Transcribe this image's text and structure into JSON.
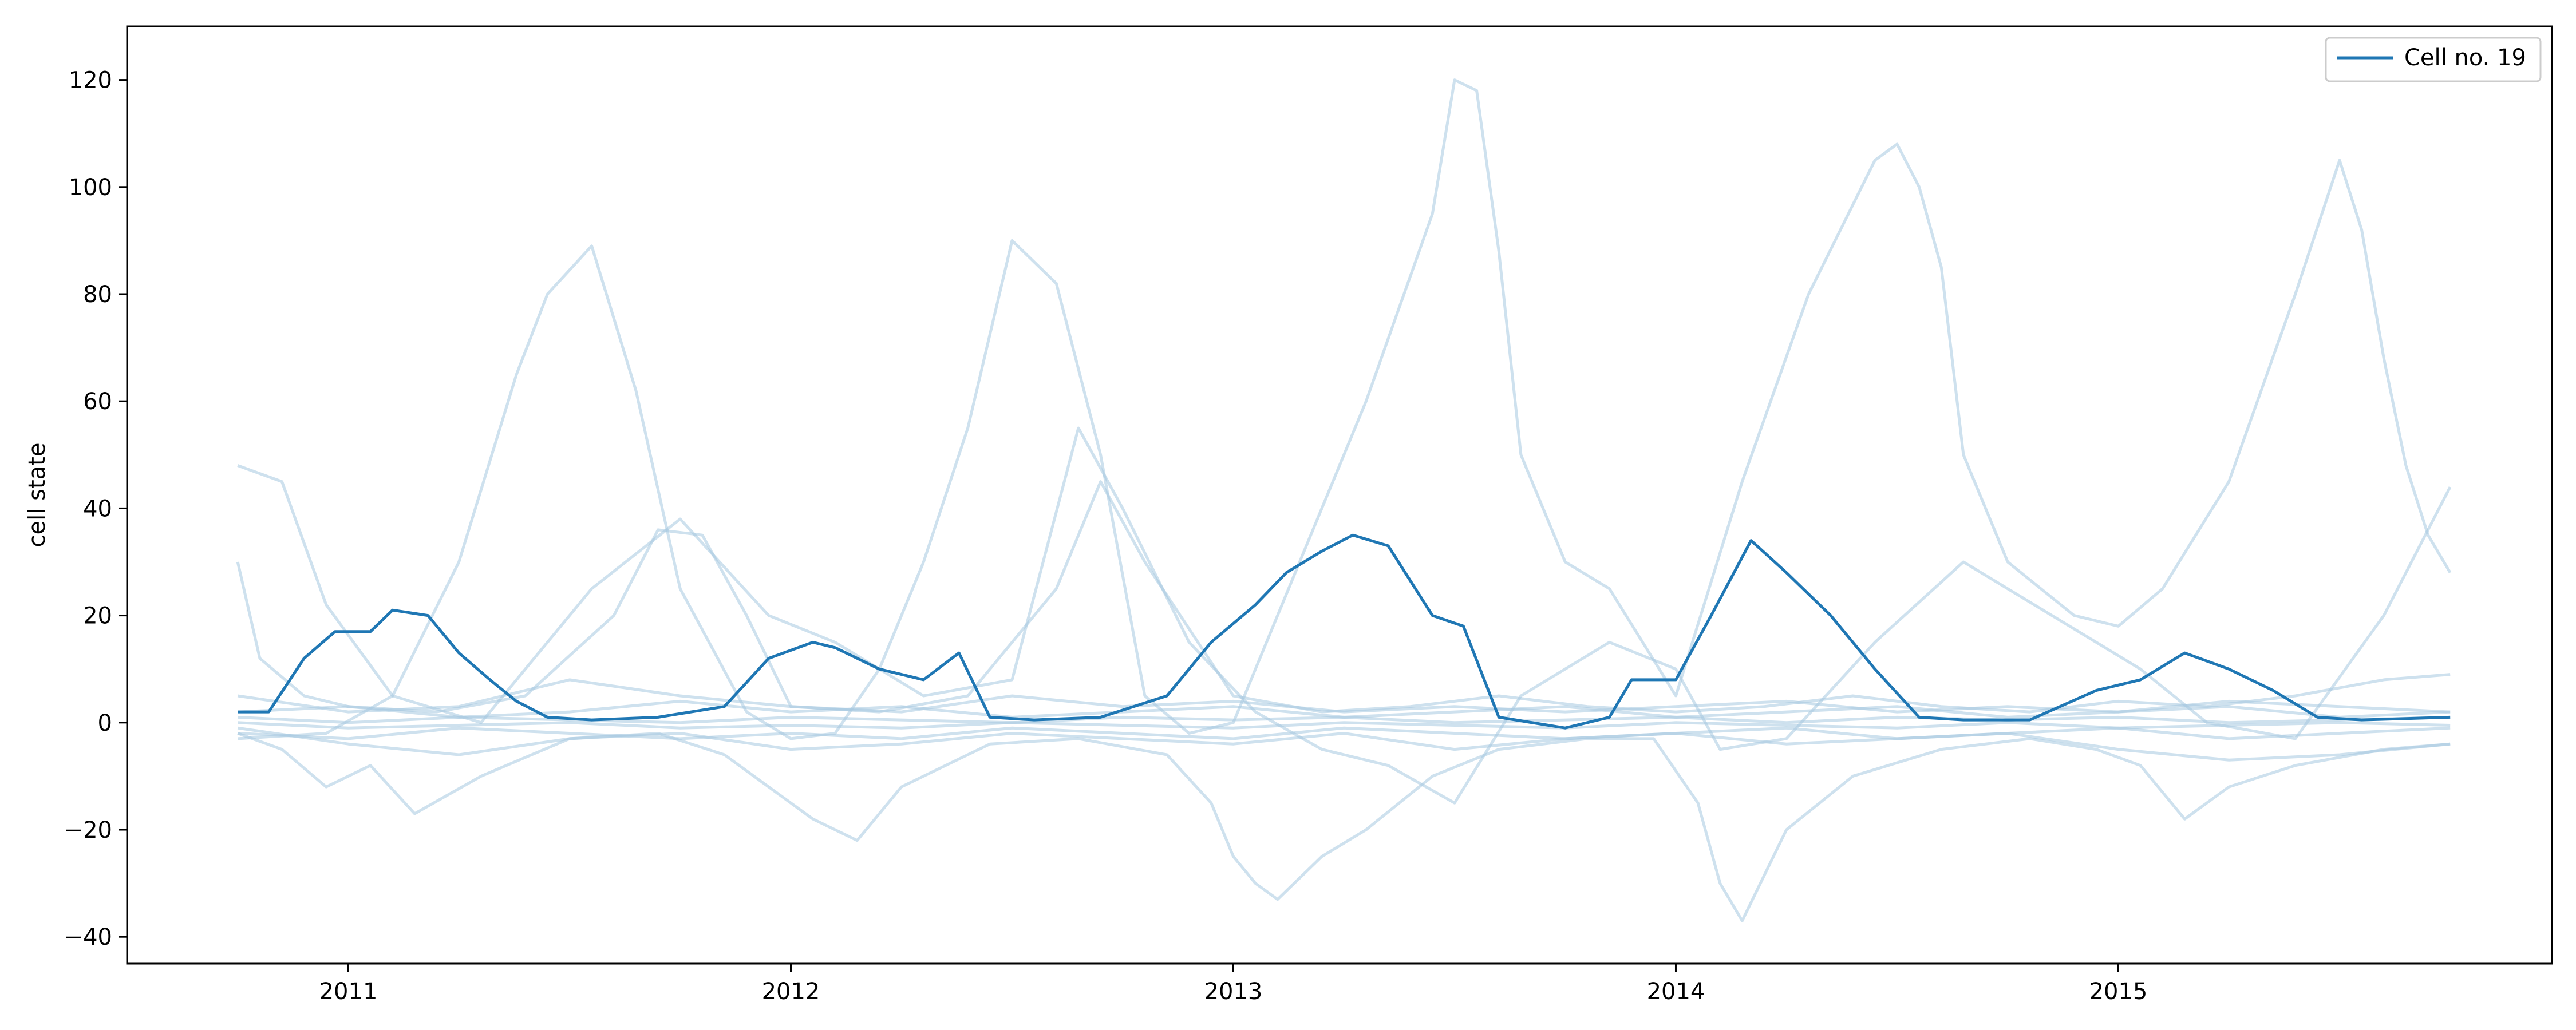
{
  "chart_data": {
    "type": "line",
    "ylabel": "cell state",
    "xlabel": "",
    "xlim": [
      2010.5,
      2015.98
    ],
    "ylim": [
      -45,
      130
    ],
    "xticks": [
      {
        "value": 2011,
        "label": "2011"
      },
      {
        "value": 2012,
        "label": "2012"
      },
      {
        "value": 2013,
        "label": "2013"
      },
      {
        "value": 2014,
        "label": "2014"
      },
      {
        "value": 2015,
        "label": "2015"
      }
    ],
    "yticks": [
      {
        "value": 120,
        "label": "120"
      },
      {
        "value": 100,
        "label": "100"
      },
      {
        "value": 80,
        "label": "80"
      },
      {
        "value": 60,
        "label": "60"
      },
      {
        "value": 40,
        "label": "40"
      },
      {
        "value": 20,
        "label": "20"
      },
      {
        "value": 0,
        "label": "0"
      },
      {
        "value": -20,
        "label": "−20"
      },
      {
        "value": -40,
        "label": "−40"
      }
    ],
    "grid": false,
    "legend": {
      "position": "top-right",
      "entries": [
        "Cell no. 19"
      ]
    },
    "highlight_color": "#1f77b4",
    "background_color": "#a6c8e0",
    "highlight": {
      "name": "Cell no. 19",
      "x": [
        2010.75,
        2010.82,
        2010.9,
        2010.97,
        2011.05,
        2011.1,
        2011.18,
        2011.25,
        2011.32,
        2011.38,
        2011.45,
        2011.55,
        2011.7,
        2011.85,
        2011.95,
        2012.05,
        2012.1,
        2012.2,
        2012.3,
        2012.38,
        2012.45,
        2012.55,
        2012.7,
        2012.85,
        2012.95,
        2013.05,
        2013.12,
        2013.2,
        2013.27,
        2013.35,
        2013.45,
        2013.52,
        2013.6,
        2013.75,
        2013.85,
        2013.9,
        2014.0,
        2014.08,
        2014.17,
        2014.25,
        2014.35,
        2014.45,
        2014.55,
        2014.65,
        2014.8,
        2014.95,
        2015.05,
        2015.15,
        2015.25,
        2015.35,
        2015.45,
        2015.55,
        2015.75
      ],
      "y": [
        2,
        2,
        12,
        17,
        17,
        21,
        20,
        13,
        8,
        4,
        1,
        0.5,
        1,
        3,
        12,
        15,
        14,
        10,
        8,
        13,
        1,
        0.5,
        1,
        5,
        15,
        22,
        28,
        32,
        35,
        33,
        20,
        18,
        1,
        -1,
        1,
        8,
        8,
        20,
        34,
        28,
        20,
        10,
        1,
        0.5,
        0.5,
        6,
        8,
        13,
        10,
        6,
        1,
        0.5,
        1
      ]
    },
    "series": [
      {
        "name": "",
        "x": [
          2010.75,
          2010.95,
          2011.1,
          2011.25,
          2011.38,
          2011.45,
          2011.55,
          2011.65,
          2011.75,
          2011.9,
          2012.0,
          2012.1,
          2012.2,
          2012.3,
          2012.4,
          2012.5,
          2012.6,
          2012.7,
          2012.8,
          2012.9,
          2013.0,
          2013.15,
          2013.3,
          2013.45,
          2013.5,
          2013.55,
          2013.6,
          2013.65,
          2013.75,
          2013.85,
          2014.0,
          2014.15,
          2014.3,
          2014.45,
          2014.5,
          2014.55,
          2014.6,
          2014.65,
          2014.75,
          2014.9,
          2015.0,
          2015.1,
          2015.25,
          2015.4,
          2015.5,
          2015.55,
          2015.6,
          2015.65,
          2015.7,
          2015.75
        ],
        "y": [
          -3,
          -2,
          5,
          30,
          65,
          80,
          89,
          62,
          25,
          2,
          -3,
          -2,
          10,
          30,
          55,
          90,
          82,
          50,
          5,
          -2,
          0,
          30,
          60,
          95,
          120,
          118,
          88,
          50,
          30,
          25,
          5,
          45,
          80,
          105,
          108,
          100,
          85,
          50,
          30,
          20,
          18,
          25,
          45,
          80,
          105,
          92,
          68,
          48,
          35,
          28
        ]
      },
      {
        "name": "",
        "x": [
          2010.75,
          2010.85,
          2010.95,
          2011.1,
          2011.3,
          2011.55,
          2011.75,
          2011.95,
          2012.1,
          2012.3,
          2012.5,
          2012.65,
          2012.75,
          2012.9,
          2013.05,
          2013.2,
          2013.35,
          2013.5,
          2013.65,
          2013.85,
          2014.0,
          2014.1,
          2014.25,
          2014.45,
          2014.65,
          2014.85,
          2015.05,
          2015.2,
          2015.4,
          2015.6,
          2015.75
        ],
        "y": [
          48,
          45,
          22,
          5,
          0,
          25,
          38,
          20,
          15,
          5,
          8,
          55,
          40,
          15,
          2,
          -5,
          -8,
          -15,
          5,
          15,
          10,
          -5,
          -3,
          15,
          30,
          20,
          10,
          0,
          -3,
          20,
          44
        ]
      },
      {
        "name": "",
        "x": [
          2010.75,
          2010.85,
          2010.95,
          2011.05,
          2011.15,
          2011.3,
          2011.5,
          2011.7,
          2011.85,
          2011.95,
          2012.05,
          2012.15,
          2012.25,
          2012.45,
          2012.65,
          2012.85,
          2012.95,
          2013.0,
          2013.05,
          2013.1,
          2013.2,
          2013.3,
          2013.45,
          2013.6,
          2013.8,
          2013.95,
          2014.05,
          2014.1,
          2014.15,
          2014.25,
          2014.4,
          2014.6,
          2014.8,
          2014.95,
          2015.05,
          2015.15,
          2015.25,
          2015.4,
          2015.6,
          2015.75
        ],
        "y": [
          -2,
          -5,
          -12,
          -8,
          -17,
          -10,
          -3,
          -2,
          -6,
          -12,
          -18,
          -22,
          -12,
          -4,
          -3,
          -6,
          -15,
          -25,
          -30,
          -33,
          -25,
          -20,
          -10,
          -5,
          -3,
          -3,
          -15,
          -30,
          -37,
          -20,
          -10,
          -5,
          -3,
          -5,
          -8,
          -18,
          -12,
          -8,
          -5,
          -4
        ]
      },
      {
        "name": "",
        "x": [
          2010.75,
          2010.8,
          2010.9,
          2011.0,
          2011.2,
          2011.4,
          2011.6,
          2011.7,
          2011.8,
          2011.9,
          2012.0,
          2012.2,
          2012.4,
          2012.6,
          2012.7,
          2012.8,
          2013.0,
          2013.2,
          2013.4,
          2013.6,
          2013.8,
          2014.0,
          2014.2,
          2014.4,
          2014.6,
          2014.8,
          2015.0,
          2015.2,
          2015.4,
          2015.6,
          2015.75
        ],
        "y": [
          30,
          12,
          5,
          3,
          2,
          5,
          20,
          36,
          35,
          20,
          3,
          2,
          5,
          25,
          45,
          30,
          5,
          2,
          3,
          5,
          3,
          2,
          3,
          5,
          3,
          2,
          4,
          3,
          5,
          8,
          9
        ]
      },
      {
        "name": "",
        "x": [
          2010.75,
          2011.0,
          2011.25,
          2011.5,
          2011.75,
          2012.0,
          2012.25,
          2012.5,
          2012.75,
          2013.0,
          2013.25,
          2013.5,
          2013.75,
          2014.0,
          2014.25,
          2014.5,
          2014.75,
          2015.0,
          2015.25,
          2015.5,
          2015.75
        ],
        "y": [
          5,
          2,
          3,
          8,
          5,
          3,
          2,
          5,
          3,
          4,
          2,
          3,
          2,
          3,
          4,
          2,
          3,
          2,
          4,
          3,
          2
        ]
      },
      {
        "name": "",
        "x": [
          2010.75,
          2011.0,
          2011.25,
          2011.5,
          2011.75,
          2012.0,
          2012.25,
          2012.5,
          2012.75,
          2013.0,
          2013.25,
          2013.5,
          2013.75,
          2014.0,
          2014.25,
          2014.5,
          2014.75,
          2015.0,
          2015.25,
          2015.5,
          2015.75
        ],
        "y": [
          -1,
          -4,
          -6,
          -3,
          -2,
          -5,
          -4,
          -2,
          -3,
          -4,
          -2,
          -5,
          -3,
          -2,
          -4,
          -3,
          -2,
          -5,
          -7,
          -6,
          -4
        ]
      },
      {
        "name": "",
        "x": [
          2010.75,
          2011.0,
          2011.25,
          2011.5,
          2011.75,
          2012.0,
          2012.25,
          2012.5,
          2012.75,
          2013.0,
          2013.25,
          2013.5,
          2013.75,
          2014.0,
          2014.25,
          2014.5,
          2014.75,
          2015.0,
          2015.25,
          2015.5,
          2015.75
        ],
        "y": [
          1,
          0,
          1,
          0.5,
          0,
          1,
          0.5,
          0,
          1,
          0.5,
          1,
          0,
          0.5,
          1,
          0,
          1,
          0.5,
          1,
          0,
          0.5,
          1
        ]
      },
      {
        "name": "",
        "x": [
          2010.75,
          2011.0,
          2011.25,
          2011.5,
          2011.75,
          2012.0,
          2012.25,
          2012.5,
          2012.75,
          2013.0,
          2013.25,
          2013.5,
          2013.75,
          2014.0,
          2014.25,
          2014.5,
          2014.75,
          2015.0,
          2015.25,
          2015.5,
          2015.75
        ],
        "y": [
          0,
          -1,
          -0.5,
          0,
          -1,
          -0.5,
          -1,
          0,
          -0.5,
          -1,
          0,
          -0.5,
          -1,
          0,
          -0.5,
          -1,
          0,
          -1,
          -0.5,
          0,
          -0.5
        ]
      },
      {
        "name": "",
        "x": [
          2010.75,
          2011.0,
          2011.25,
          2011.5,
          2011.75,
          2012.0,
          2012.25,
          2012.5,
          2012.75,
          2013.0,
          2013.25,
          2013.5,
          2013.75,
          2014.0,
          2014.25,
          2014.5,
          2014.75,
          2015.0,
          2015.25,
          2015.5,
          2015.75
        ],
        "y": [
          2,
          3,
          1,
          2,
          4,
          2,
          3,
          1,
          2,
          3,
          1,
          2,
          3,
          1,
          2,
          3,
          1,
          2,
          3,
          1,
          2
        ]
      },
      {
        "name": "",
        "x": [
          2010.75,
          2011.0,
          2011.25,
          2011.5,
          2011.75,
          2012.0,
          2012.25,
          2012.5,
          2012.75,
          2013.0,
          2013.25,
          2013.5,
          2013.75,
          2014.0,
          2014.25,
          2014.5,
          2014.75,
          2015.0,
          2015.25,
          2015.5,
          2015.75
        ],
        "y": [
          -2,
          -3,
          -1,
          -2,
          -3,
          -2,
          -3,
          -1,
          -2,
          -3,
          -1,
          -2,
          -3,
          -2,
          -1,
          -3,
          -2,
          -1,
          -3,
          -2,
          -1
        ]
      }
    ]
  }
}
